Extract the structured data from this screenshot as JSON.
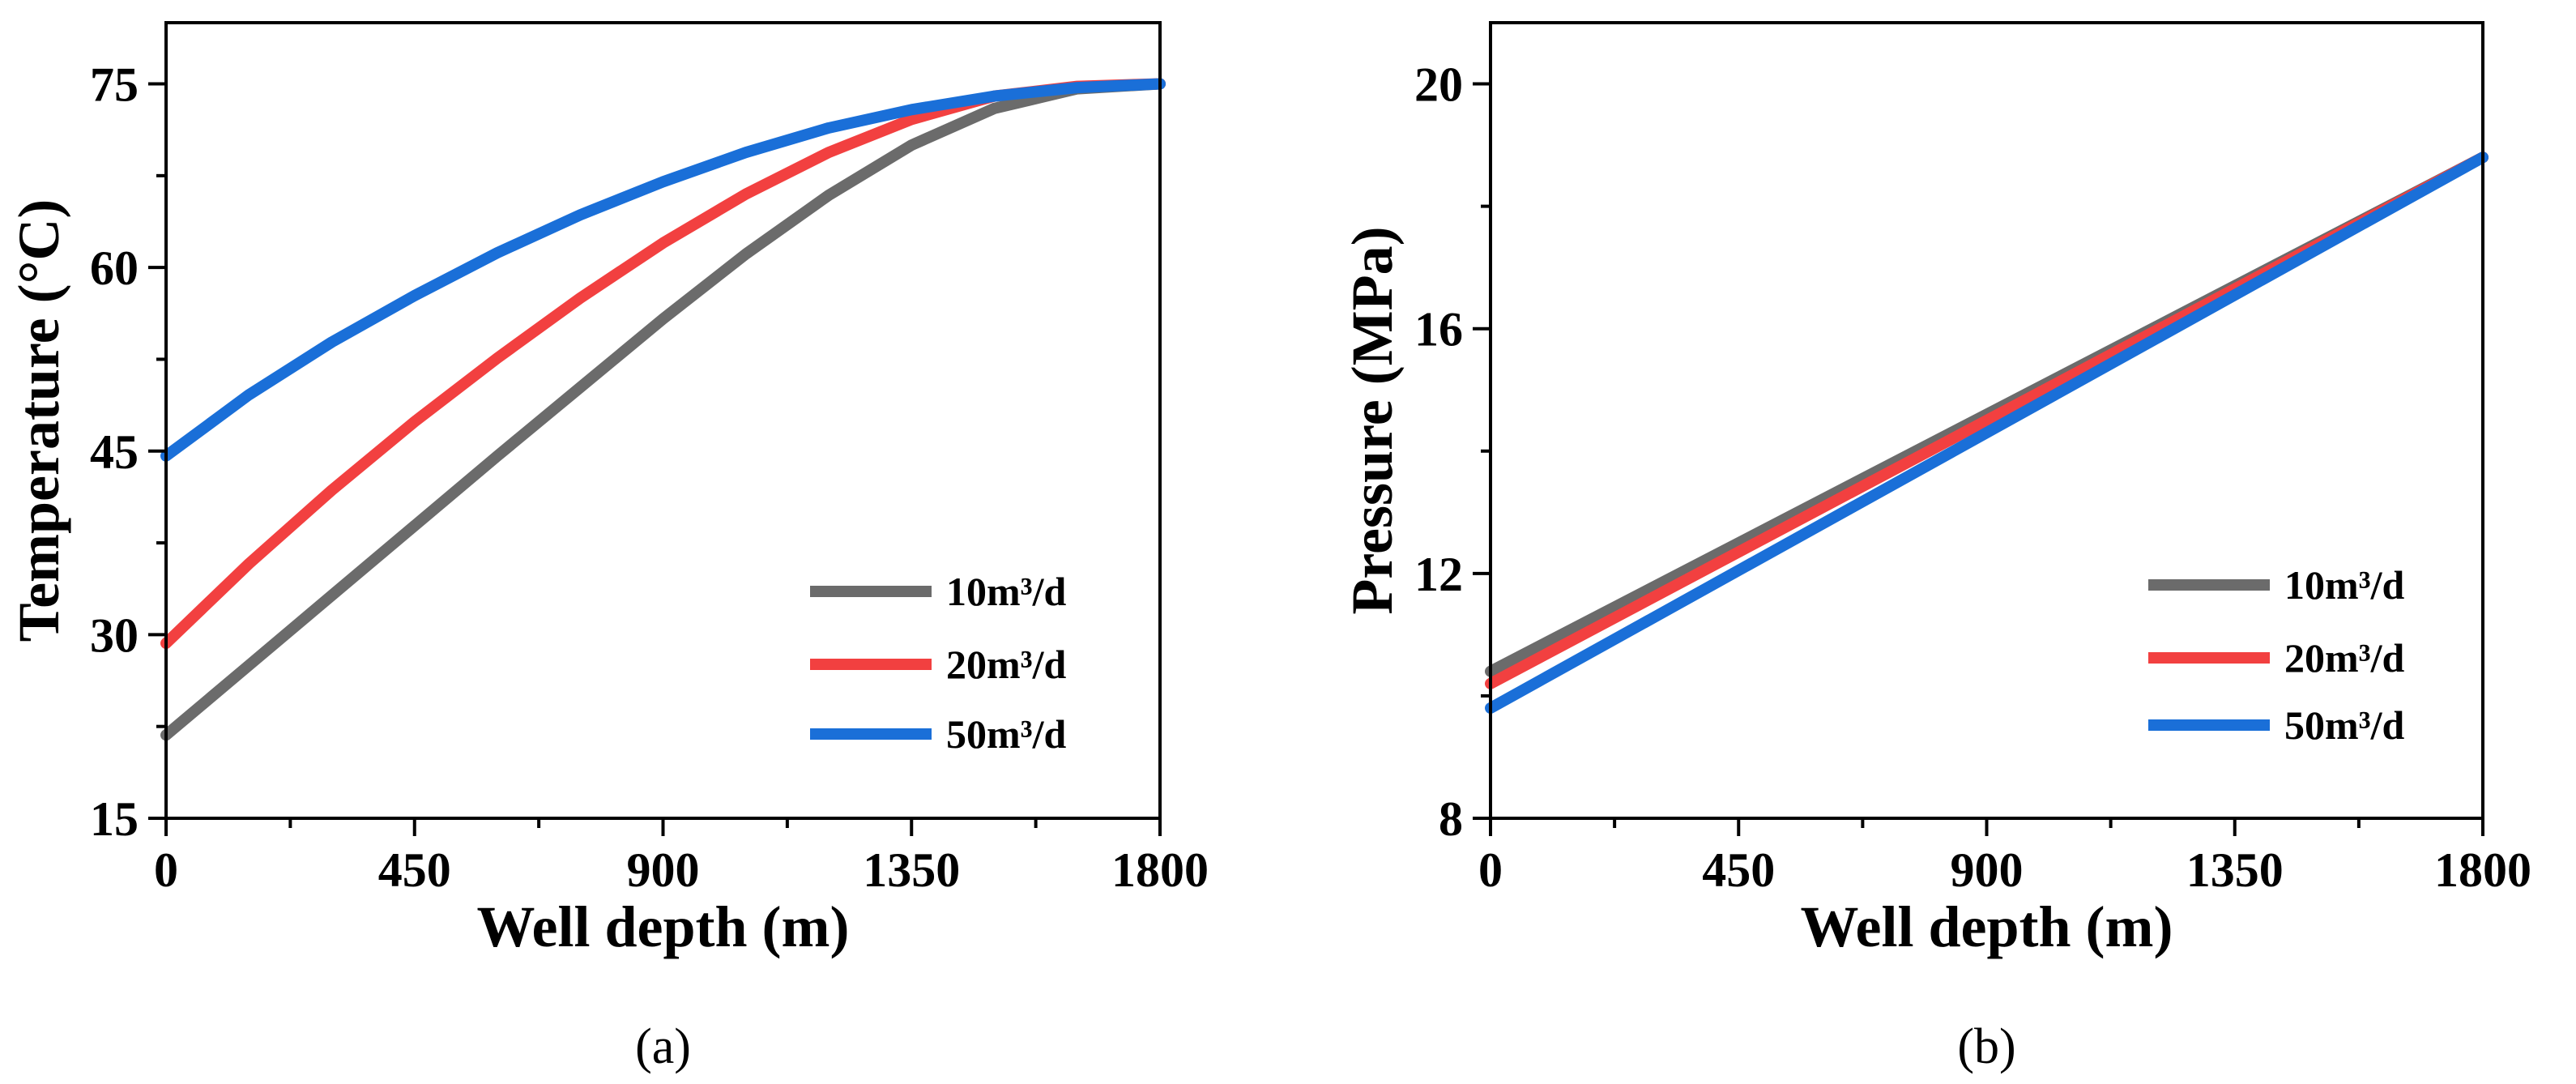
{
  "chart_data": [
    {
      "type": "line",
      "caption": "(a)",
      "xlabel": "Well depth (m)",
      "ylabel": "Temperature (°C)",
      "xlim": [
        0,
        1800
      ],
      "ylim": [
        15,
        80
      ],
      "xticks": [
        0,
        450,
        900,
        1350,
        1800
      ],
      "xtick_labels": [
        "0",
        "450",
        "900",
        "1350",
        "1800"
      ],
      "yticks": [
        15,
        30,
        45,
        60,
        75
      ],
      "ytick_labels": [
        "15",
        "30",
        "45",
        "60",
        "75"
      ],
      "legend_position": "bottom-right",
      "x": [
        0,
        150,
        300,
        450,
        600,
        750,
        900,
        1050,
        1200,
        1350,
        1500,
        1650,
        1800
      ],
      "series": [
        {
          "name": "10m³/d",
          "color": "#6b6b6b",
          "values": [
            21.8,
            27.5,
            33.2,
            38.9,
            44.6,
            50.2,
            55.8,
            61.1,
            65.9,
            70.0,
            73.0,
            74.6,
            75.0
          ]
        },
        {
          "name": "20m³/d",
          "color": "#f24040",
          "values": [
            29.3,
            35.8,
            41.8,
            47.4,
            52.6,
            57.5,
            62.0,
            66.0,
            69.4,
            72.1,
            74.0,
            74.8,
            75.0
          ]
        },
        {
          "name": "50m³/d",
          "color": "#1a6fd8",
          "values": [
            44.6,
            49.6,
            53.9,
            57.7,
            61.2,
            64.3,
            67.0,
            69.4,
            71.4,
            72.9,
            74.0,
            74.7,
            75.0
          ]
        }
      ]
    },
    {
      "type": "line",
      "caption": "(b)",
      "xlabel": "Well depth (m)",
      "ylabel": "Pressure (MPa)",
      "xlim": [
        0,
        1800
      ],
      "ylim": [
        8,
        21
      ],
      "xticks": [
        0,
        450,
        900,
        1350,
        1800
      ],
      "xtick_labels": [
        "0",
        "450",
        "900",
        "1350",
        "1800"
      ],
      "yticks": [
        8,
        12,
        16,
        20
      ],
      "ytick_labels": [
        "8",
        "12",
        "16",
        "20"
      ],
      "legend_position": "bottom-right",
      "x": [
        0,
        1800
      ],
      "series": [
        {
          "name": "10m³/d",
          "color": "#6b6b6b",
          "values": [
            10.4,
            18.8
          ]
        },
        {
          "name": "20m³/d",
          "color": "#f24040",
          "values": [
            10.2,
            18.8
          ]
        },
        {
          "name": "50m³/d",
          "color": "#1a6fd8",
          "values": [
            9.8,
            18.8
          ]
        }
      ]
    }
  ]
}
